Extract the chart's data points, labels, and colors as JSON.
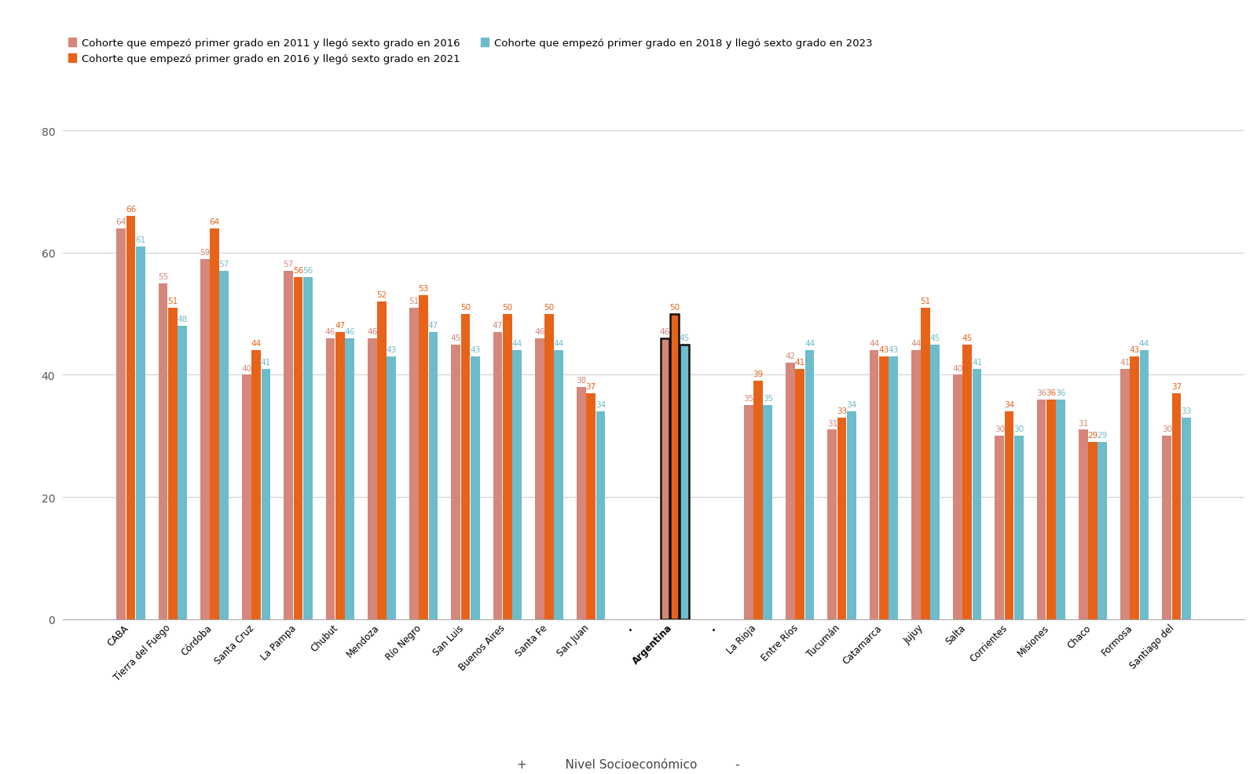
{
  "categories": [
    "CABA",
    "Tierra del Fuego",
    "Córdoba",
    "Santa Cruz",
    "La Pampa",
    "Chubut",
    "Mendoza",
    "Río Negro",
    "San Luis",
    "Buenos Aires",
    "Santa Fe",
    "San Juan",
    "·",
    "Argentina",
    "·",
    "La Rioja",
    "Entre Ríos",
    "Tucumán",
    "Catamarca",
    "Jujuy",
    "Salta",
    "Corrientes",
    "Misiones",
    "Chaco",
    "Formosa",
    "Santiago del"
  ],
  "argentina_index": 13,
  "series": {
    "s2011": {
      "label": "Cohorte que empezó primer grado en 2011 y llegó sexto grado en 2016",
      "color": "#D4877A",
      "values": [
        64,
        55,
        59,
        40,
        57,
        46,
        46,
        51,
        45,
        47,
        46,
        38,
        null,
        46,
        null,
        35,
        42,
        31,
        44,
        44,
        40,
        30,
        36,
        31,
        41,
        30
      ]
    },
    "s2016": {
      "label": "Cohorte que empezó primer grado en 2016 y llegó sexto grado en 2021",
      "color": "#E8631A",
      "values": [
        66,
        51,
        64,
        44,
        56,
        47,
        52,
        53,
        50,
        50,
        50,
        37,
        null,
        50,
        null,
        39,
        41,
        33,
        43,
        51,
        45,
        34,
        36,
        29,
        43,
        37
      ]
    },
    "s2018": {
      "label": "Cohorte que empezó primer grado en 2018 y llegó sexto grado en 2023",
      "color": "#6DBCCC",
      "values": [
        61,
        48,
        57,
        41,
        56,
        46,
        43,
        47,
        43,
        44,
        44,
        34,
        null,
        45,
        null,
        35,
        44,
        34,
        43,
        45,
        41,
        30,
        36,
        29,
        44,
        33
      ]
    }
  },
  "ylim": [
    0,
    85
  ],
  "yticks": [
    0,
    20,
    40,
    60,
    80
  ],
  "background_color": "#ffffff",
  "grid_color": "#d0d0d0",
  "argentina_outline_color": "#111111",
  "label_fontsize": 7.5
}
